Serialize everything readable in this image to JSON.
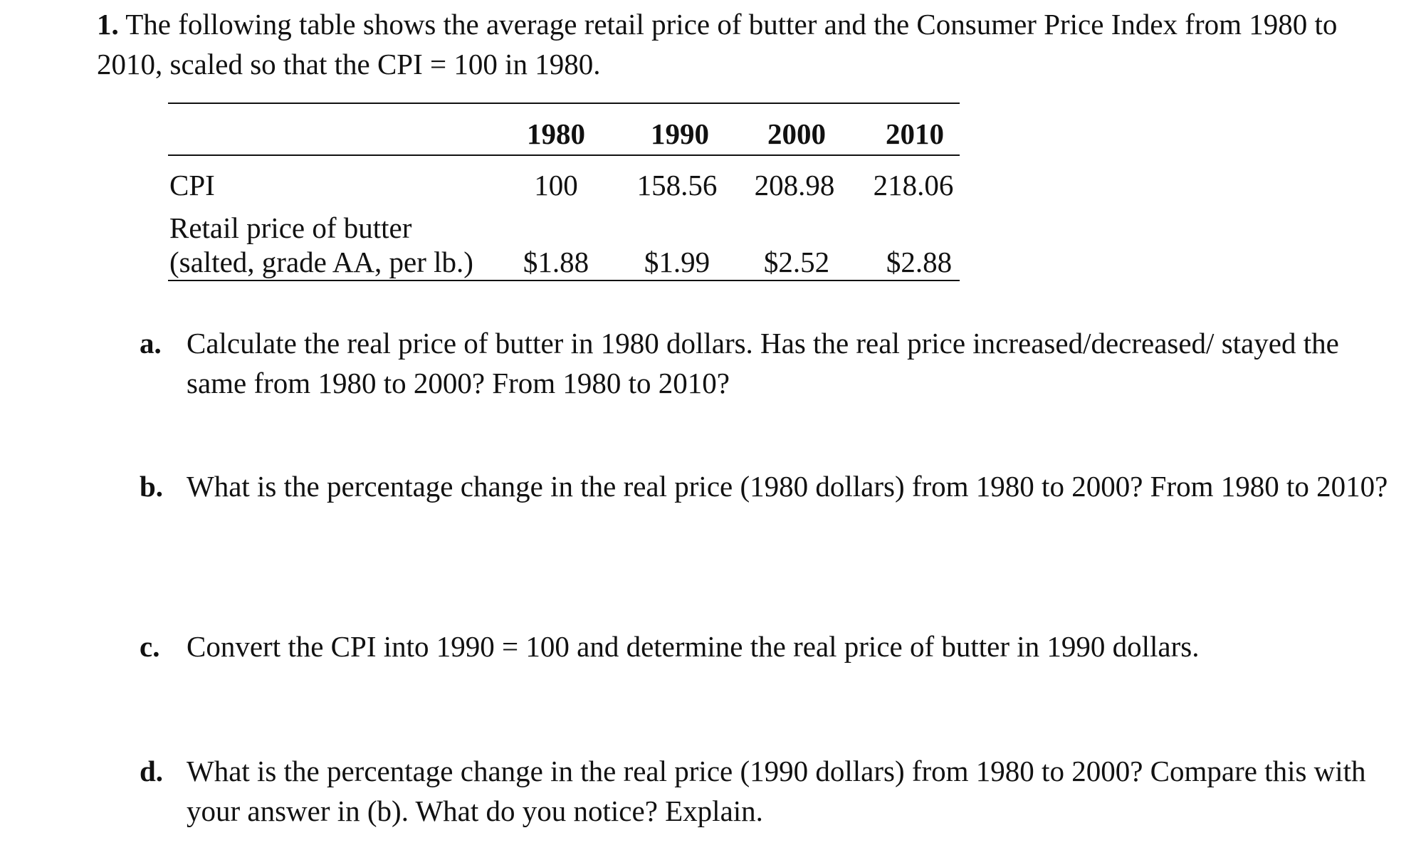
{
  "question": {
    "number": "1.",
    "intro": "The following table shows the average retail price of butter and the Consumer Price Index from 1980 to 2010, scaled so that the CPI = 100 in 1980."
  },
  "table": {
    "years": [
      "1980",
      "1990",
      "2000",
      "2010"
    ],
    "rows": [
      {
        "label": "CPI",
        "values": [
          "100",
          "158.56",
          "208.98",
          "218.06"
        ]
      },
      {
        "label_line1": "Retail price of butter",
        "label_line2": "(salted, grade AA, per lb.)",
        "values": [
          "$1.88",
          "$1.99",
          "$2.52",
          "$2.88"
        ]
      }
    ]
  },
  "parts": [
    {
      "letter": "a.",
      "text": "Calculate the real price of butter in 1980 dollars. Has the real price increased/decreased/ stayed the same from 1980 to 2000? From 1980 to 2010?"
    },
    {
      "letter": "b.",
      "text": "What is the percentage change in the real price (1980 dollars) from 1980 to 2000? From 1980 to 2010?"
    },
    {
      "letter": "c.",
      "text": "Convert the CPI into 1990 = 100 and determine the real price of butter in 1990 dollars."
    },
    {
      "letter": "d.",
      "text": "What is the percentage change in the real price (1990 dollars) from 1980 to 2000? Compare this with your answer in (b). What do you notice? Explain."
    }
  ]
}
